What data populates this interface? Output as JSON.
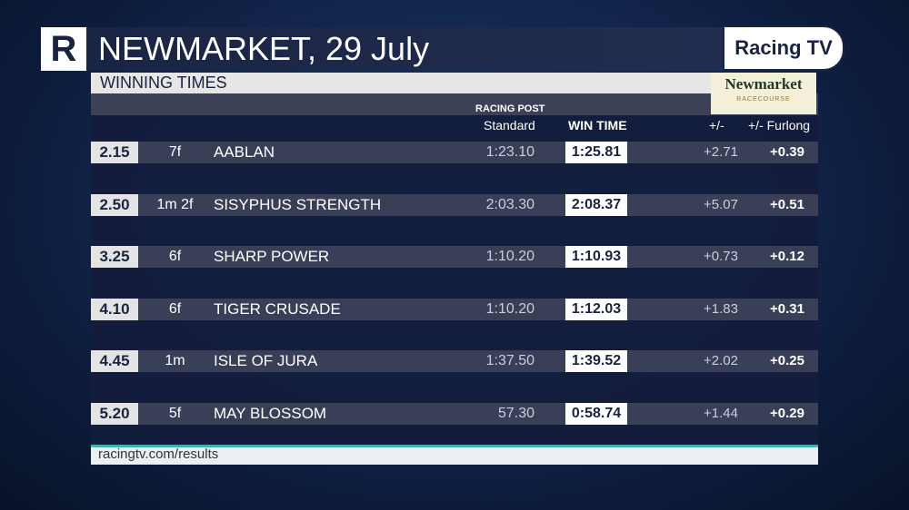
{
  "header": {
    "logo": "R",
    "title": "NEWMARKET, 29 July",
    "brand": "Racing TV"
  },
  "panel": {
    "subtitle": "WINNING TIMES",
    "course_logo": "Newmarket",
    "course_sub": "RACECOURSE",
    "sponsor": "RACING POST"
  },
  "table": {
    "columns": [
      "Standard",
      "WIN TIME",
      "+/-",
      "+/- Furlong"
    ],
    "rows": [
      [
        "2.15",
        "7f",
        "AABLAN",
        "1:23.10",
        "1:25.81",
        "+2.71",
        "+0.39"
      ],
      [
        "2.50",
        "1m 2f",
        "SISYPHUS STRENGTH",
        "2:03.30",
        "2:08.37",
        "+5.07",
        "+0.51"
      ],
      [
        "3.25",
        "6f",
        "SHARP POWER",
        "1:10.20",
        "1:10.93",
        "+0.73",
        "+0.12"
      ],
      [
        "4.10",
        "6f",
        "TIGER CRUSADE",
        "1:10.20",
        "1:12.03",
        "+1.83",
        "+0.31"
      ],
      [
        "4.45",
        "1m",
        "ISLE OF JURA",
        "1:37.50",
        "1:39.52",
        "+2.02",
        "+0.25"
      ],
      [
        "5.20",
        "5f",
        "MAY BLOSSOM",
        "57.30",
        "0:58.74",
        "+1.44",
        "+0.29"
      ]
    ]
  },
  "footer": {
    "url": "racingtv.com/results"
  }
}
